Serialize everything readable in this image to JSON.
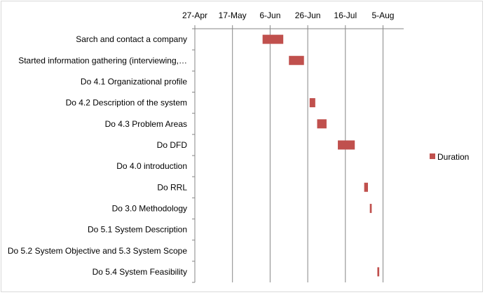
{
  "chart_data": {
    "type": "bar",
    "orientation": "horizontal",
    "title": "",
    "xlabel": "",
    "ylabel": "",
    "x_axis_position": "top",
    "x_ticks": [
      "27-Apr",
      "17-May",
      "6-Jun",
      "26-Jun",
      "16-Jul",
      "5-Aug"
    ],
    "x_tick_dates": [
      "2014-04-27",
      "2014-05-17",
      "2014-06-06",
      "2014-06-26",
      "2014-07-16",
      "2014-08-05"
    ],
    "xlim": [
      "2014-04-27",
      "2014-08-16"
    ],
    "grid": "vertical",
    "legend_position": "right",
    "series": [
      {
        "name": "Duration",
        "color": "#c0504d"
      }
    ],
    "categories": [
      "Sarch and contact a company",
      "Started information gathering (interviewing,…",
      "Do 4.1 Organizational profile",
      "Do 4.2 Description of the system",
      "Do 4.3 Problem Areas",
      "Do DFD",
      "Do 4.0 introduction",
      "Do RRL",
      "Do 3.0 Methodology",
      "Do 5.1 System Description",
      "Do 5.2 System Objective and 5.3 System Scope",
      "Do 5.4 System Feasibility"
    ],
    "tasks": [
      {
        "start": "2014-06-02",
        "end": "2014-06-13"
      },
      {
        "start": "2014-06-16",
        "end": "2014-06-24"
      },
      null,
      {
        "start": "2014-06-27",
        "end": "2014-06-30"
      },
      {
        "start": "2014-07-01",
        "end": "2014-07-06"
      },
      {
        "start": "2014-07-12",
        "end": "2014-07-21"
      },
      null,
      {
        "start": "2014-07-26",
        "end": "2014-07-28"
      },
      {
        "start": "2014-07-29",
        "end": "2014-07-30"
      },
      null,
      null,
      {
        "start": "2014-08-02",
        "end": "2014-08-03"
      }
    ]
  }
}
